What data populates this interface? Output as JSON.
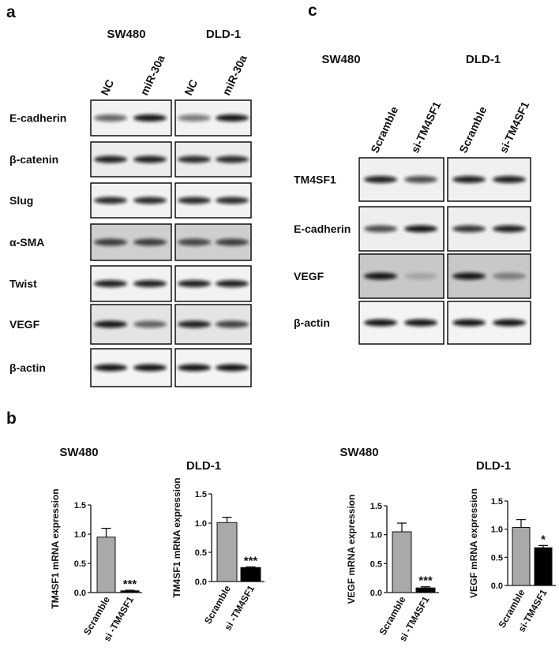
{
  "panels": {
    "a": {
      "label": "a",
      "cell_lines": [
        "SW480",
        "DLD-1"
      ],
      "lanes": [
        "NC",
        "miR-30a"
      ],
      "rows": [
        "E-cadherin",
        "β-catenin",
        "Slug",
        "α-SMA",
        "Twist",
        "VEGF",
        "β-actin"
      ]
    },
    "b": {
      "label": "b"
    },
    "c": {
      "label": "c",
      "cell_lines": [
        "SW480",
        "DLD-1"
      ],
      "lanes": [
        "Scramble",
        "si-TM4SF1"
      ],
      "rows": [
        "TM4SF1",
        "E-cadherin",
        "VEGF",
        "β-actin"
      ]
    }
  },
  "chart_data": [
    {
      "type": "bar",
      "title": "SW480",
      "ylabel": "TM4SF1 mRNA expression",
      "categories": [
        "Scramble",
        "si -TM4SF1"
      ],
      "values": [
        0.95,
        0.03
      ],
      "errors": [
        0.15,
        0.01
      ],
      "colors": [
        "#a9a9a9",
        "#000000"
      ],
      "annotation": "***",
      "ylim": [
        0,
        1.5
      ],
      "yticks": [
        {
          "value": 0,
          "label": "0.0"
        },
        0.5,
        {
          "value": 1,
          "label": "1.0"
        },
        1.5
      ]
    },
    {
      "type": "bar",
      "title": "DLD-1",
      "ylabel": "TM4SF1 mRNA expression",
      "categories": [
        "Scramble",
        "si -TM4SF1"
      ],
      "values": [
        1.01,
        0.24
      ],
      "errors": [
        0.09,
        0.01
      ],
      "colors": [
        "#a9a9a9",
        "#000000"
      ],
      "annotation": "***",
      "ylim": [
        0,
        1.5
      ],
      "yticks": [
        {
          "value": 0,
          "label": "0.0"
        },
        0.5,
        {
          "value": 1,
          "label": "1.0"
        },
        1.5
      ]
    },
    {
      "type": "bar",
      "title": "SW480",
      "ylabel": "VEGF mRNA expression",
      "categories": [
        "Scramble",
        "si -TM4SF1"
      ],
      "values": [
        1.05,
        0.08
      ],
      "errors": [
        0.15,
        0.02
      ],
      "colors": [
        "#a9a9a9",
        "#000000"
      ],
      "annotation": "***",
      "ylim": [
        0,
        1.5
      ],
      "yticks": [
        {
          "value": 0,
          "label": "0.0"
        },
        0.5,
        {
          "value": 1,
          "label": "1.0"
        },
        1.5
      ]
    },
    {
      "type": "bar",
      "title": "DLD-1",
      "ylabel": "VEGF mRNA expression",
      "categories": [
        "Scramble",
        "si-TM4SF1"
      ],
      "values": [
        1.03,
        0.67
      ],
      "errors": [
        0.14,
        0.04
      ],
      "colors": [
        "#a9a9a9",
        "#000000"
      ],
      "annotation": "*",
      "ylim": [
        0,
        1.5
      ],
      "yticks": [
        {
          "value": 0,
          "label": "0.0"
        },
        0.5,
        {
          "value": 1,
          "label": "1.0"
        },
        1.5
      ]
    }
  ]
}
